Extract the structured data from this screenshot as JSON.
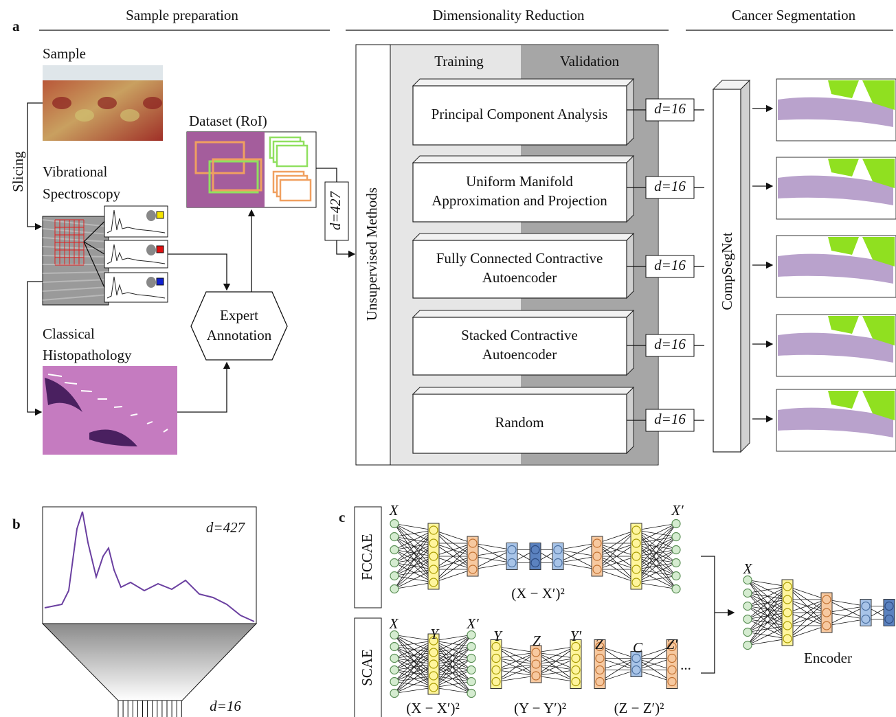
{
  "panel_labels": [
    "a",
    "b",
    "c"
  ],
  "panel_a": {
    "headings": [
      "Sample preparation",
      "Dimensionality Reduction",
      "Cancer Segmentation"
    ],
    "sample": "Sample",
    "slicing": "Slicing",
    "spectroscopy": [
      "Vibrational",
      "Spectroscopy"
    ],
    "histopathology": [
      "Classical",
      "Histopathology"
    ],
    "dataset": "Dataset (RoI)",
    "annotation": [
      "Expert",
      "Annotation"
    ],
    "input_dim": "d=427",
    "unsupervised": "Unsupervised Methods",
    "training": "Training",
    "validation": "Validation",
    "methods": [
      [
        "Principal Component Analysis"
      ],
      [
        "Uniform Manifold",
        "Approximation and Projection"
      ],
      [
        "Fully Connected Contractive",
        "Autoencoder"
      ],
      [
        "Stacked Contractive",
        "Autoencoder"
      ],
      [
        "Random"
      ]
    ],
    "output_dims": [
      "d=16",
      "d=16",
      "d=16",
      "d=16",
      "d=16"
    ],
    "segmentation_net": "CompSegNet"
  },
  "panel_b": {
    "input_dim": "d=427",
    "output_dim": "d=16"
  },
  "panel_c": {
    "fccae": {
      "label": "FCCAE",
      "input": "X",
      "output": "X′",
      "loss": "(X − X′)²"
    },
    "scae": {
      "label": "SCAE",
      "stages": [
        {
          "input": "X",
          "hidden": "Y",
          "output": "X′",
          "loss": "(X − X′)²"
        },
        {
          "input": "Y",
          "hidden": "Z",
          "output": "Y′",
          "loss": "(Y − Y′)²"
        },
        {
          "input": "Z",
          "hidden": "C",
          "output": "Z′",
          "loss": "(Z − Z′)²"
        }
      ],
      "ellipsis": "..."
    },
    "encoder": {
      "input": "X",
      "label": "Encoder"
    }
  }
}
